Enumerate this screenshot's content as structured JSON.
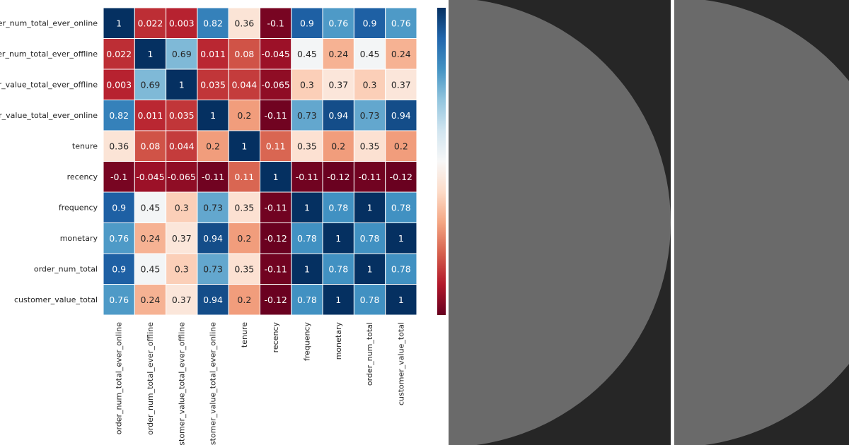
{
  "chart_data": {
    "type": "heatmap",
    "title": "",
    "colormap": "RdBu",
    "vmin": -0.125,
    "vmax": 1,
    "row_labels": [
      "order_num_total_ever_online",
      "order_num_total_ever_offline",
      "customer_value_total_ever_offline",
      "customer_value_total_ever_online",
      "tenure",
      "recency",
      "frequency",
      "monetary",
      "order_num_total",
      "customer_value_total"
    ],
    "col_labels": [
      "order_num_total_ever_online",
      "order_num_total_ever_offline",
      "customer_value_total_ever_offline",
      "customer_value_total_ever_online",
      "tenure",
      "recency",
      "frequency",
      "monetary",
      "order_num_total",
      "customer_value_total"
    ],
    "values": [
      [
        1,
        0.022,
        0.003,
        0.82,
        0.36,
        -0.1,
        0.9,
        0.76,
        0.9,
        0.76
      ],
      [
        0.022,
        1,
        0.69,
        0.011,
        0.08,
        -0.045,
        0.45,
        0.24,
        0.45,
        0.24
      ],
      [
        0.003,
        0.69,
        1,
        0.035,
        0.044,
        -0.065,
        0.3,
        0.37,
        0.3,
        0.37
      ],
      [
        0.82,
        0.011,
        0.035,
        1,
        0.2,
        -0.11,
        0.73,
        0.94,
        0.73,
        0.94
      ],
      [
        0.36,
        0.08,
        0.044,
        0.2,
        1,
        0.11,
        0.35,
        0.2,
        0.35,
        0.2
      ],
      [
        -0.1,
        -0.045,
        -0.065,
        -0.11,
        0.11,
        1,
        -0.11,
        -0.12,
        -0.11,
        -0.12
      ],
      [
        0.9,
        0.45,
        0.3,
        0.73,
        0.35,
        -0.11,
        1,
        0.78,
        1,
        0.78
      ],
      [
        0.76,
        0.24,
        0.37,
        0.94,
        0.2,
        -0.12,
        0.78,
        1,
        0.78,
        1
      ],
      [
        0.9,
        0.45,
        0.3,
        0.73,
        0.35,
        -0.11,
        1,
        0.78,
        1,
        0.78
      ],
      [
        0.76,
        0.24,
        0.37,
        0.94,
        0.2,
        -0.12,
        0.78,
        1,
        0.78,
        1
      ]
    ],
    "value_labels": [
      [
        "1",
        "0.022",
        "0.003",
        "0.82",
        "0.36",
        "-0.1",
        "0.9",
        "0.76",
        "0.9",
        "0.76"
      ],
      [
        "0.022",
        "1",
        "0.69",
        "0.011",
        "0.08",
        "-0.045",
        "0.45",
        "0.24",
        "0.45",
        "0.24"
      ],
      [
        "0.003",
        "0.69",
        "1",
        "0.035",
        "0.044",
        "-0.065",
        "0.3",
        "0.37",
        "0.3",
        "0.37"
      ],
      [
        "0.82",
        "0.011",
        "0.035",
        "1",
        "0.2",
        "-0.11",
        "0.73",
        "0.94",
        "0.73",
        "0.94"
      ],
      [
        "0.36",
        "0.08",
        "0.044",
        "0.2",
        "1",
        "0.11",
        "0.35",
        "0.2",
        "0.35",
        "0.2"
      ],
      [
        "-0.1",
        "-0.045",
        "-0.065",
        "-0.11",
        "0.11",
        "1",
        "-0.11",
        "-0.12",
        "-0.11",
        "-0.12"
      ],
      [
        "0.9",
        "0.45",
        "0.3",
        "0.73",
        "0.35",
        "-0.11",
        "1",
        "0.78",
        "1",
        "0.78"
      ],
      [
        "0.76",
        "0.24",
        "0.37",
        "0.94",
        "0.2",
        "-0.12",
        "0.78",
        "1",
        "0.78",
        "1"
      ],
      [
        "0.9",
        "0.45",
        "0.3",
        "0.73",
        "0.35",
        "-0.11",
        "1",
        "0.78",
        "1",
        "0.78"
      ],
      [
        "0.76",
        "0.24",
        "0.37",
        "0.94",
        "0.2",
        "-0.12",
        "0.78",
        "1",
        "0.78",
        "1"
      ]
    ],
    "colorbar": true,
    "colorbar_ticks": []
  },
  "colors": {
    "right_background": "#262626",
    "semicircle": "#6a6a6a",
    "cell_border": "#ffffff"
  }
}
